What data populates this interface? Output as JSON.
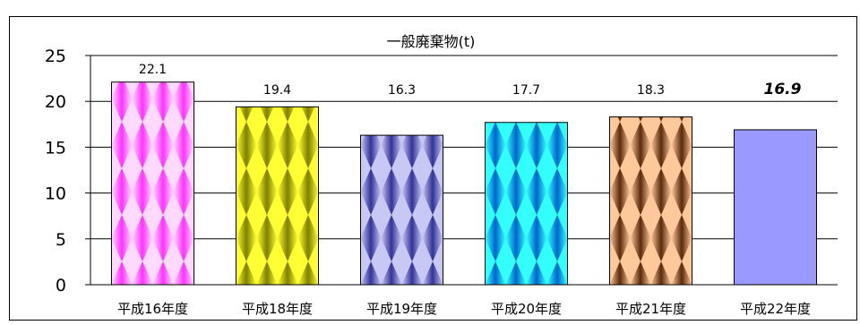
{
  "chart_data": {
    "type": "bar",
    "title": "一般廃棄物(t)",
    "categories": [
      "平成16年度",
      "平成18年度",
      "平成19年度",
      "平成20年度",
      "平成21年度",
      "平成22年度"
    ],
    "values": [
      22.1,
      19.4,
      16.3,
      17.7,
      18.3,
      16.9
    ],
    "data_labels": [
      "22.1",
      "19.4",
      "16.3",
      "17.7",
      "18.3",
      "16.9"
    ],
    "highlighted_label_index": 5,
    "ylim": [
      0,
      25
    ],
    "yticks": [
      0,
      5,
      10,
      15,
      20,
      25
    ],
    "grid": true,
    "legend": "none",
    "bar_styles": [
      {
        "dark": "#ff33ff",
        "light": "#ffd9ff"
      },
      {
        "dark": "#808000",
        "light": "#ffff33"
      },
      {
        "dark": "#333399",
        "light": "#c8c8f5"
      },
      {
        "dark": "#0066cc",
        "light": "#33ffff"
      },
      {
        "dark": "#5a2a0a",
        "light": "#ffc89b"
      },
      {
        "dark": "#9999ff",
        "light": "#9999ff"
      }
    ]
  }
}
